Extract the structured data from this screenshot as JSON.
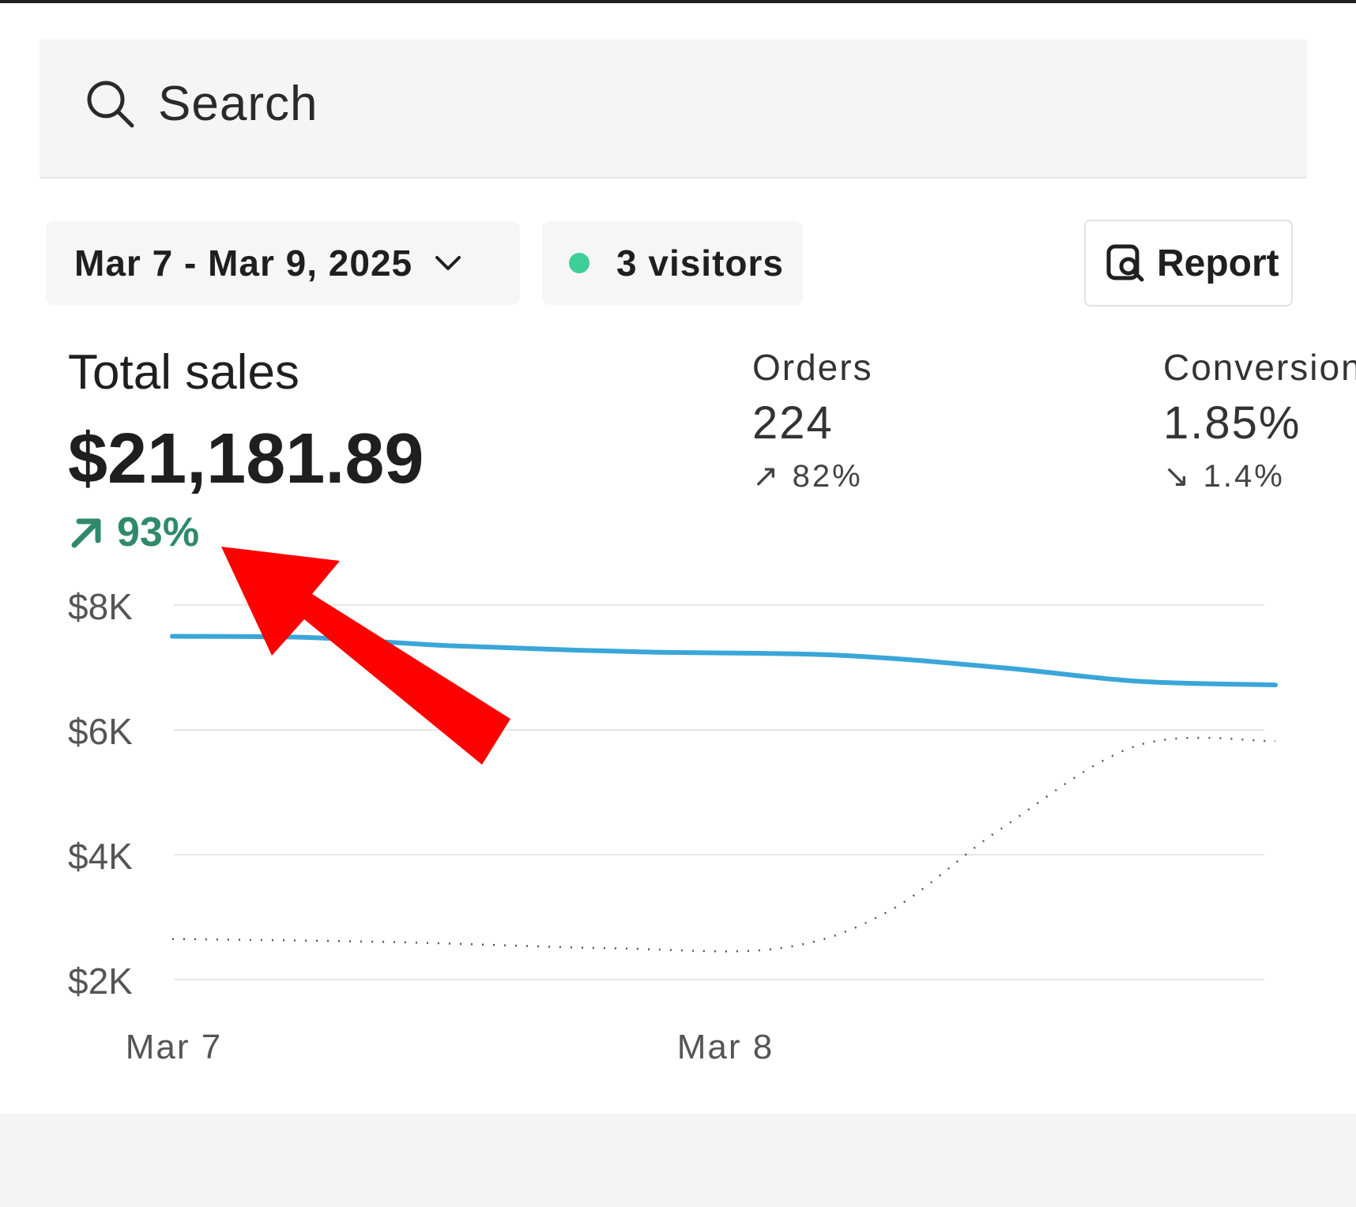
{
  "search": {
    "placeholder": "Search"
  },
  "filters": {
    "date_range": "Mar 7 - Mar 9, 2025",
    "visitors": "3 visitors",
    "report_label": "Report"
  },
  "metrics": {
    "total_sales": {
      "label": "Total sales",
      "value": "$21,181.89",
      "change": "93%"
    },
    "orders": {
      "label": "Orders",
      "value": "224",
      "change": "82%"
    },
    "conversion": {
      "label": "Conversion",
      "value": "1.85%",
      "change": "1.4%"
    }
  },
  "colors": {
    "current_series": "#3aa6d8",
    "comparison_series": "#555555",
    "positive_change": "#2f8a6a",
    "status_dot": "#3ccf98",
    "annotation_arrow": "#ff0000"
  },
  "chart_data": {
    "type": "line",
    "ylim": [
      2000,
      8000
    ],
    "y_ticks": [
      {
        "value": 8000,
        "label": "$8K"
      },
      {
        "value": 6000,
        "label": "$6K"
      },
      {
        "value": 4000,
        "label": "$4K"
      },
      {
        "value": 2000,
        "label": "$2K"
      }
    ],
    "x_ticks": [
      {
        "value": 0,
        "label": "Mar 7"
      },
      {
        "value": 1,
        "label": "Mar 8"
      }
    ],
    "xlim": [
      0,
      2
    ],
    "grid": true,
    "series": [
      {
        "style": "solid",
        "color": "#3aa6d8",
        "x": [
          0,
          0.25,
          0.5,
          0.85,
          1.2,
          1.5,
          1.75,
          2.0
        ],
        "y": [
          7500,
          7480,
          7350,
          7250,
          7200,
          7000,
          6780,
          6720
        ]
      },
      {
        "style": "dotted",
        "color": "#555555",
        "x": [
          0,
          0.4,
          0.8,
          1.1,
          1.3,
          1.5,
          1.75,
          2.0
        ],
        "y": [
          2650,
          2600,
          2500,
          2500,
          3100,
          4400,
          5750,
          5820
        ]
      }
    ]
  }
}
